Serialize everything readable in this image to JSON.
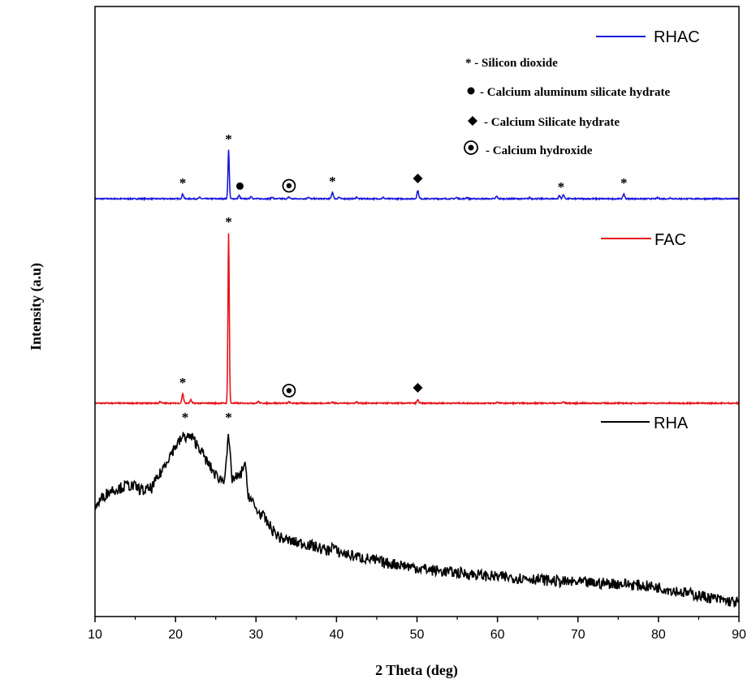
{
  "chart_data": {
    "type": "line",
    "xlabel": "2 Theta (deg)",
    "ylabel": "Intensity (a.u)",
    "xlim": [
      10,
      90
    ],
    "xticks": [
      "10",
      "20",
      "30",
      "40",
      "50",
      "60",
      "70",
      "80",
      "90"
    ],
    "grid": false,
    "phase_key": [
      {
        "symbol": "asterisk",
        "text": "* - Silicon dioxide"
      },
      {
        "symbol": "circle",
        "text": "- Calcium aluminum silicate hydrate"
      },
      {
        "symbol": "diamond",
        "text": "- Calcium Silicate hydrate"
      },
      {
        "symbol": "ringed-dot",
        "text": "- Calcium hydroxide"
      }
    ],
    "series": [
      {
        "name": "RHAC",
        "color": "#1a1adc",
        "baseline": 0,
        "peaks": [
          {
            "x": 20.9,
            "h": 6,
            "w": 0.15
          },
          {
            "x": 23.0,
            "h": 1.5,
            "w": 0.15
          },
          {
            "x": 26.6,
            "h": 60,
            "w": 0.12
          },
          {
            "x": 27.9,
            "h": 4,
            "w": 0.15
          },
          {
            "x": 29.4,
            "h": 3,
            "w": 0.15
          },
          {
            "x": 32.0,
            "h": 2,
            "w": 0.15
          },
          {
            "x": 34.1,
            "h": 2,
            "w": 0.15
          },
          {
            "x": 36.5,
            "h": 2,
            "w": 0.15
          },
          {
            "x": 39.5,
            "h": 8,
            "w": 0.15
          },
          {
            "x": 40.3,
            "h": 2,
            "w": 0.15
          },
          {
            "x": 42.5,
            "h": 2,
            "w": 0.15
          },
          {
            "x": 45.8,
            "h": 1.5,
            "w": 0.15
          },
          {
            "x": 50.1,
            "h": 10,
            "w": 0.15
          },
          {
            "x": 54.9,
            "h": 1.5,
            "w": 0.15
          },
          {
            "x": 56.2,
            "h": 1.5,
            "w": 0.15
          },
          {
            "x": 59.9,
            "h": 3,
            "w": 0.15
          },
          {
            "x": 64.0,
            "h": 1.2,
            "w": 0.15
          },
          {
            "x": 67.7,
            "h": 4,
            "w": 0.15
          },
          {
            "x": 68.2,
            "h": 5,
            "w": 0.15
          },
          {
            "x": 75.7,
            "h": 6,
            "w": 0.15
          },
          {
            "x": 79.9,
            "h": 1.2,
            "w": 0.15
          },
          {
            "x": 81.5,
            "h": 1.2,
            "w": 0.15
          }
        ],
        "markers": [
          {
            "x": 20.9,
            "symbol": "asterisk"
          },
          {
            "x": 26.6,
            "symbol": "asterisk"
          },
          {
            "x": 28.0,
            "symbol": "circle"
          },
          {
            "x": 34.1,
            "symbol": "ringed-dot"
          },
          {
            "x": 39.5,
            "symbol": "asterisk"
          },
          {
            "x": 50.1,
            "symbol": "diamond"
          },
          {
            "x": 67.9,
            "symbol": "asterisk"
          },
          {
            "x": 75.7,
            "symbol": "asterisk"
          }
        ]
      },
      {
        "name": "FAC",
        "color": "#e8141a",
        "baseline": 0,
        "peaks": [
          {
            "x": 18.1,
            "h": 2,
            "w": 0.15
          },
          {
            "x": 20.9,
            "h": 12,
            "w": 0.15
          },
          {
            "x": 21.9,
            "h": 4,
            "w": 0.15
          },
          {
            "x": 26.6,
            "h": 210,
            "w": 0.12
          },
          {
            "x": 30.3,
            "h": 2,
            "w": 0.15
          },
          {
            "x": 34.1,
            "h": 1.5,
            "w": 0.15
          },
          {
            "x": 39.5,
            "h": 1.5,
            "w": 0.15
          },
          {
            "x": 42.5,
            "h": 1.5,
            "w": 0.15
          },
          {
            "x": 50.1,
            "h": 4,
            "w": 0.15
          },
          {
            "x": 60.0,
            "h": 1.5,
            "w": 0.15
          },
          {
            "x": 68.2,
            "h": 1.5,
            "w": 0.15
          }
        ],
        "markers": [
          {
            "x": 20.9,
            "symbol": "asterisk"
          },
          {
            "x": 26.6,
            "symbol": "asterisk"
          },
          {
            "x": 34.1,
            "symbol": "ringed-dot"
          },
          {
            "x": 50.1,
            "symbol": "diamond"
          }
        ]
      },
      {
        "name": "RHA",
        "color": "#000000",
        "x": [
          10,
          11,
          12,
          13,
          14,
          15,
          16,
          17,
          18,
          19,
          20,
          21,
          22,
          23,
          24,
          25,
          26,
          26.6,
          27,
          28,
          28.6,
          29,
          30,
          31,
          32,
          33,
          34,
          35,
          36,
          37,
          38,
          39,
          39.5,
          40,
          42,
          44,
          46,
          48,
          50,
          52,
          54,
          56,
          58,
          60,
          62,
          64,
          66,
          68,
          70,
          72,
          74,
          76,
          78,
          80,
          82,
          84,
          86,
          88,
          90
        ],
        "values": [
          120,
          134,
          142,
          144,
          148,
          146,
          141,
          144,
          160,
          180,
          196,
          208,
          207,
          194,
          175,
          160,
          153,
          208,
          156,
          158,
          176,
          138,
          118,
          108,
          93,
          83,
          80,
          77,
          76,
          73,
          70,
          67,
          74,
          66,
          61,
          57,
          52,
          50,
          46,
          43,
          41,
          39,
          37,
          35,
          34,
          33,
          31,
          29,
          28,
          27,
          27,
          26,
          24,
          22,
          18,
          14,
          10,
          6,
          3
        ],
        "markers": [
          {
            "x": 21.2,
            "symbol": "asterisk"
          },
          {
            "x": 26.6,
            "symbol": "asterisk"
          }
        ]
      }
    ]
  }
}
